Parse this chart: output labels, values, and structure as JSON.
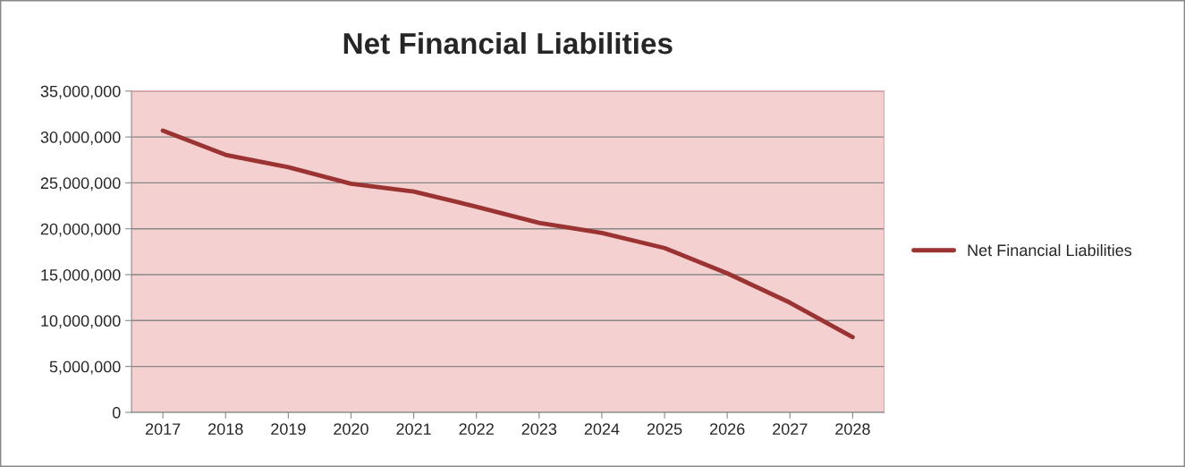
{
  "chart_data": {
    "type": "line",
    "title": "Net Financial Liabilities",
    "categories": [
      "2017",
      "2018",
      "2019",
      "2020",
      "2021",
      "2022",
      "2023",
      "2024",
      "2025",
      "2026",
      "2027",
      "2028"
    ],
    "series": [
      {
        "name": "Net Financial Liabilities",
        "color": "#9b3333",
        "values": [
          30700000,
          28050000,
          26700000,
          24900000,
          24050000,
          22400000,
          20650000,
          19550000,
          17900000,
          15150000,
          11950000,
          8200000
        ]
      }
    ],
    "ylim": [
      0,
      35000000
    ],
    "yticks": [
      {
        "value": 0,
        "label": "0"
      },
      {
        "value": 5000000,
        "label": "5,000,000"
      },
      {
        "value": 10000000,
        "label": "10,000,000"
      },
      {
        "value": 15000000,
        "label": "15,000,000"
      },
      {
        "value": 20000000,
        "label": "20,000,000"
      },
      {
        "value": 25000000,
        "label": "25,000,000"
      },
      {
        "value": 30000000,
        "label": "30,000,000"
      },
      {
        "value": 35000000,
        "label": "35,000,000"
      }
    ],
    "grid": "y",
    "legend": "right",
    "marker": "none",
    "line_style": "solid"
  }
}
